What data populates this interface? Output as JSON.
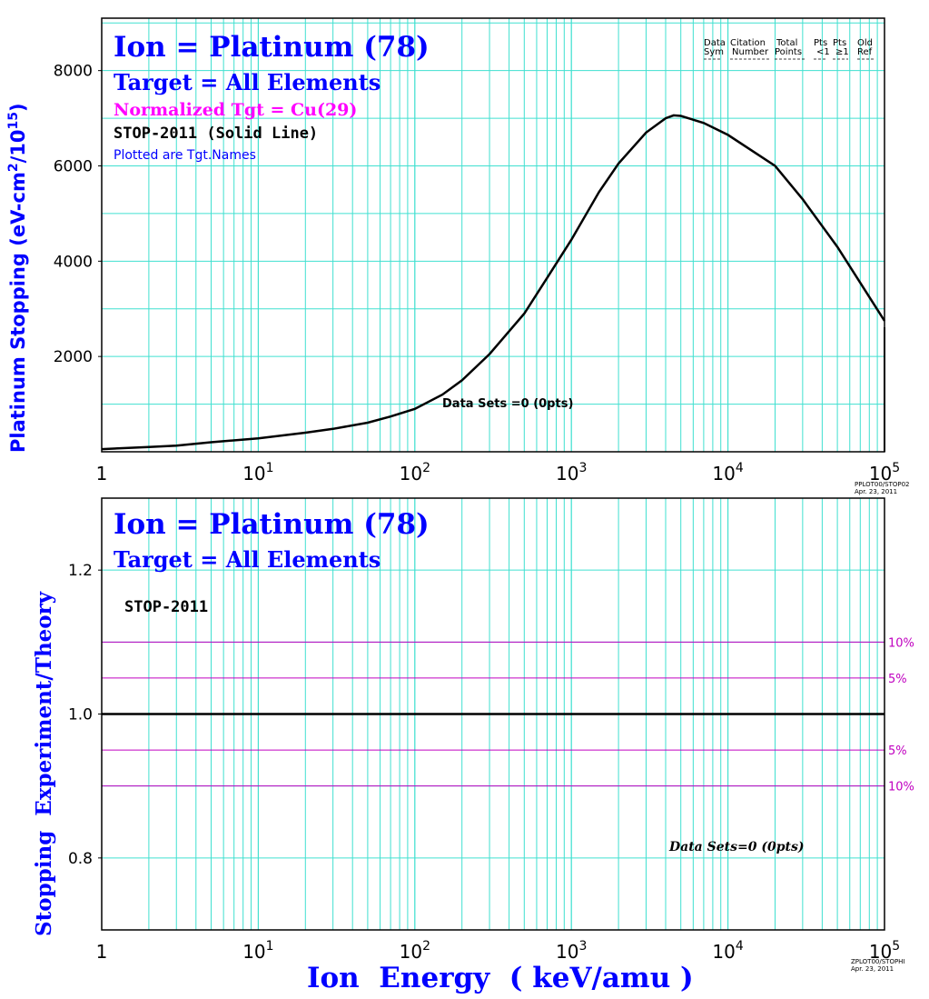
{
  "chart_data": [
    {
      "type": "line",
      "panel": "top",
      "title": "Ion = Platinum (78)",
      "subtitle": "Target = All Elements",
      "normalized": "Normalized Tgt = Cu(29)",
      "curve_label": "STOP-2011 (Solid Line)",
      "note": "Plotted are Tgt.Names",
      "data_sets": "Data Sets =0 (0pts)",
      "ylabel": "Platinum Stopping (eV-cm",
      "ylabel_sup1": "2",
      "ylabel_mid": "/10",
      "ylabel_sup2": "15",
      "ylabel_end": ")",
      "xscale": "log",
      "xlim": [
        1,
        100000
      ],
      "ylim": [
        0,
        9100
      ],
      "y_ticks": [
        2000,
        4000,
        6000,
        8000
      ],
      "legend_headers": [
        {
          "top": "Data",
          "bottom": "Sym"
        },
        {
          "top": "Citation",
          "bottom": "Number"
        },
        {
          "top": "Total",
          "bottom": "Points"
        },
        {
          "top": "Pts",
          "bottom": "<1"
        },
        {
          "top": "Pts",
          "bottom": "≥1"
        },
        {
          "top": "Old",
          "bottom": "Ref"
        }
      ],
      "stamp_line1": "PPLOT00/STOP02",
      "stamp_line2": "Apr. 23, 2011",
      "series": [
        {
          "name": "STOP-2011",
          "x": [
            1,
            2,
            3,
            5,
            10,
            20,
            30,
            50,
            70,
            100,
            150,
            200,
            300,
            500,
            700,
            1000,
            1500,
            2000,
            3000,
            4000,
            4500,
            5000,
            7000,
            10000,
            20000,
            30000,
            50000,
            100000
          ],
          "y": [
            55,
            100,
            130,
            200,
            280,
            400,
            480,
            610,
            740,
            900,
            1200,
            1500,
            2050,
            2900,
            3650,
            4450,
            5450,
            6050,
            6700,
            7000,
            7060,
            7050,
            6900,
            6650,
            6000,
            5300,
            4300,
            2750
          ]
        }
      ]
    },
    {
      "type": "line",
      "panel": "bottom",
      "title": "Ion = Platinum (78)",
      "subtitle": "Target = All Elements",
      "curve_label": "STOP-2011",
      "data_sets": "Data Sets=0 (0pts)",
      "ylabel": "Stopping  Experiment/Theory",
      "xlabel": "Ion  Energy  ( keV/amu )",
      "xscale": "log",
      "xlim": [
        1,
        100000
      ],
      "ylim": [
        0.7,
        1.3
      ],
      "y_ticks": [
        0.8,
        1.0,
        1.2
      ],
      "reference_lines": [
        {
          "y": 1.1,
          "label": "10%"
        },
        {
          "y": 1.05,
          "label": "5%"
        },
        {
          "y": 0.95,
          "label": "5%"
        },
        {
          "y": 0.9,
          "label": "10%"
        }
      ],
      "unity_line": 1.0,
      "stamp_line1": "ZPLOT00/STOPHI",
      "stamp_line2": "Apr. 23, 2011"
    }
  ],
  "x_tick_labels": [
    {
      "base": "1",
      "exp": ""
    },
    {
      "base": "10",
      "exp": "1"
    },
    {
      "base": "10",
      "exp": "2"
    },
    {
      "base": "10",
      "exp": "3"
    },
    {
      "base": "10",
      "exp": "4"
    },
    {
      "base": "10",
      "exp": "5"
    }
  ],
  "colors": {
    "grid": "#40e0d0",
    "curve": "#000000",
    "title": "#0000ff",
    "normalized": "#ff00ff",
    "reference": "#c000c0"
  }
}
